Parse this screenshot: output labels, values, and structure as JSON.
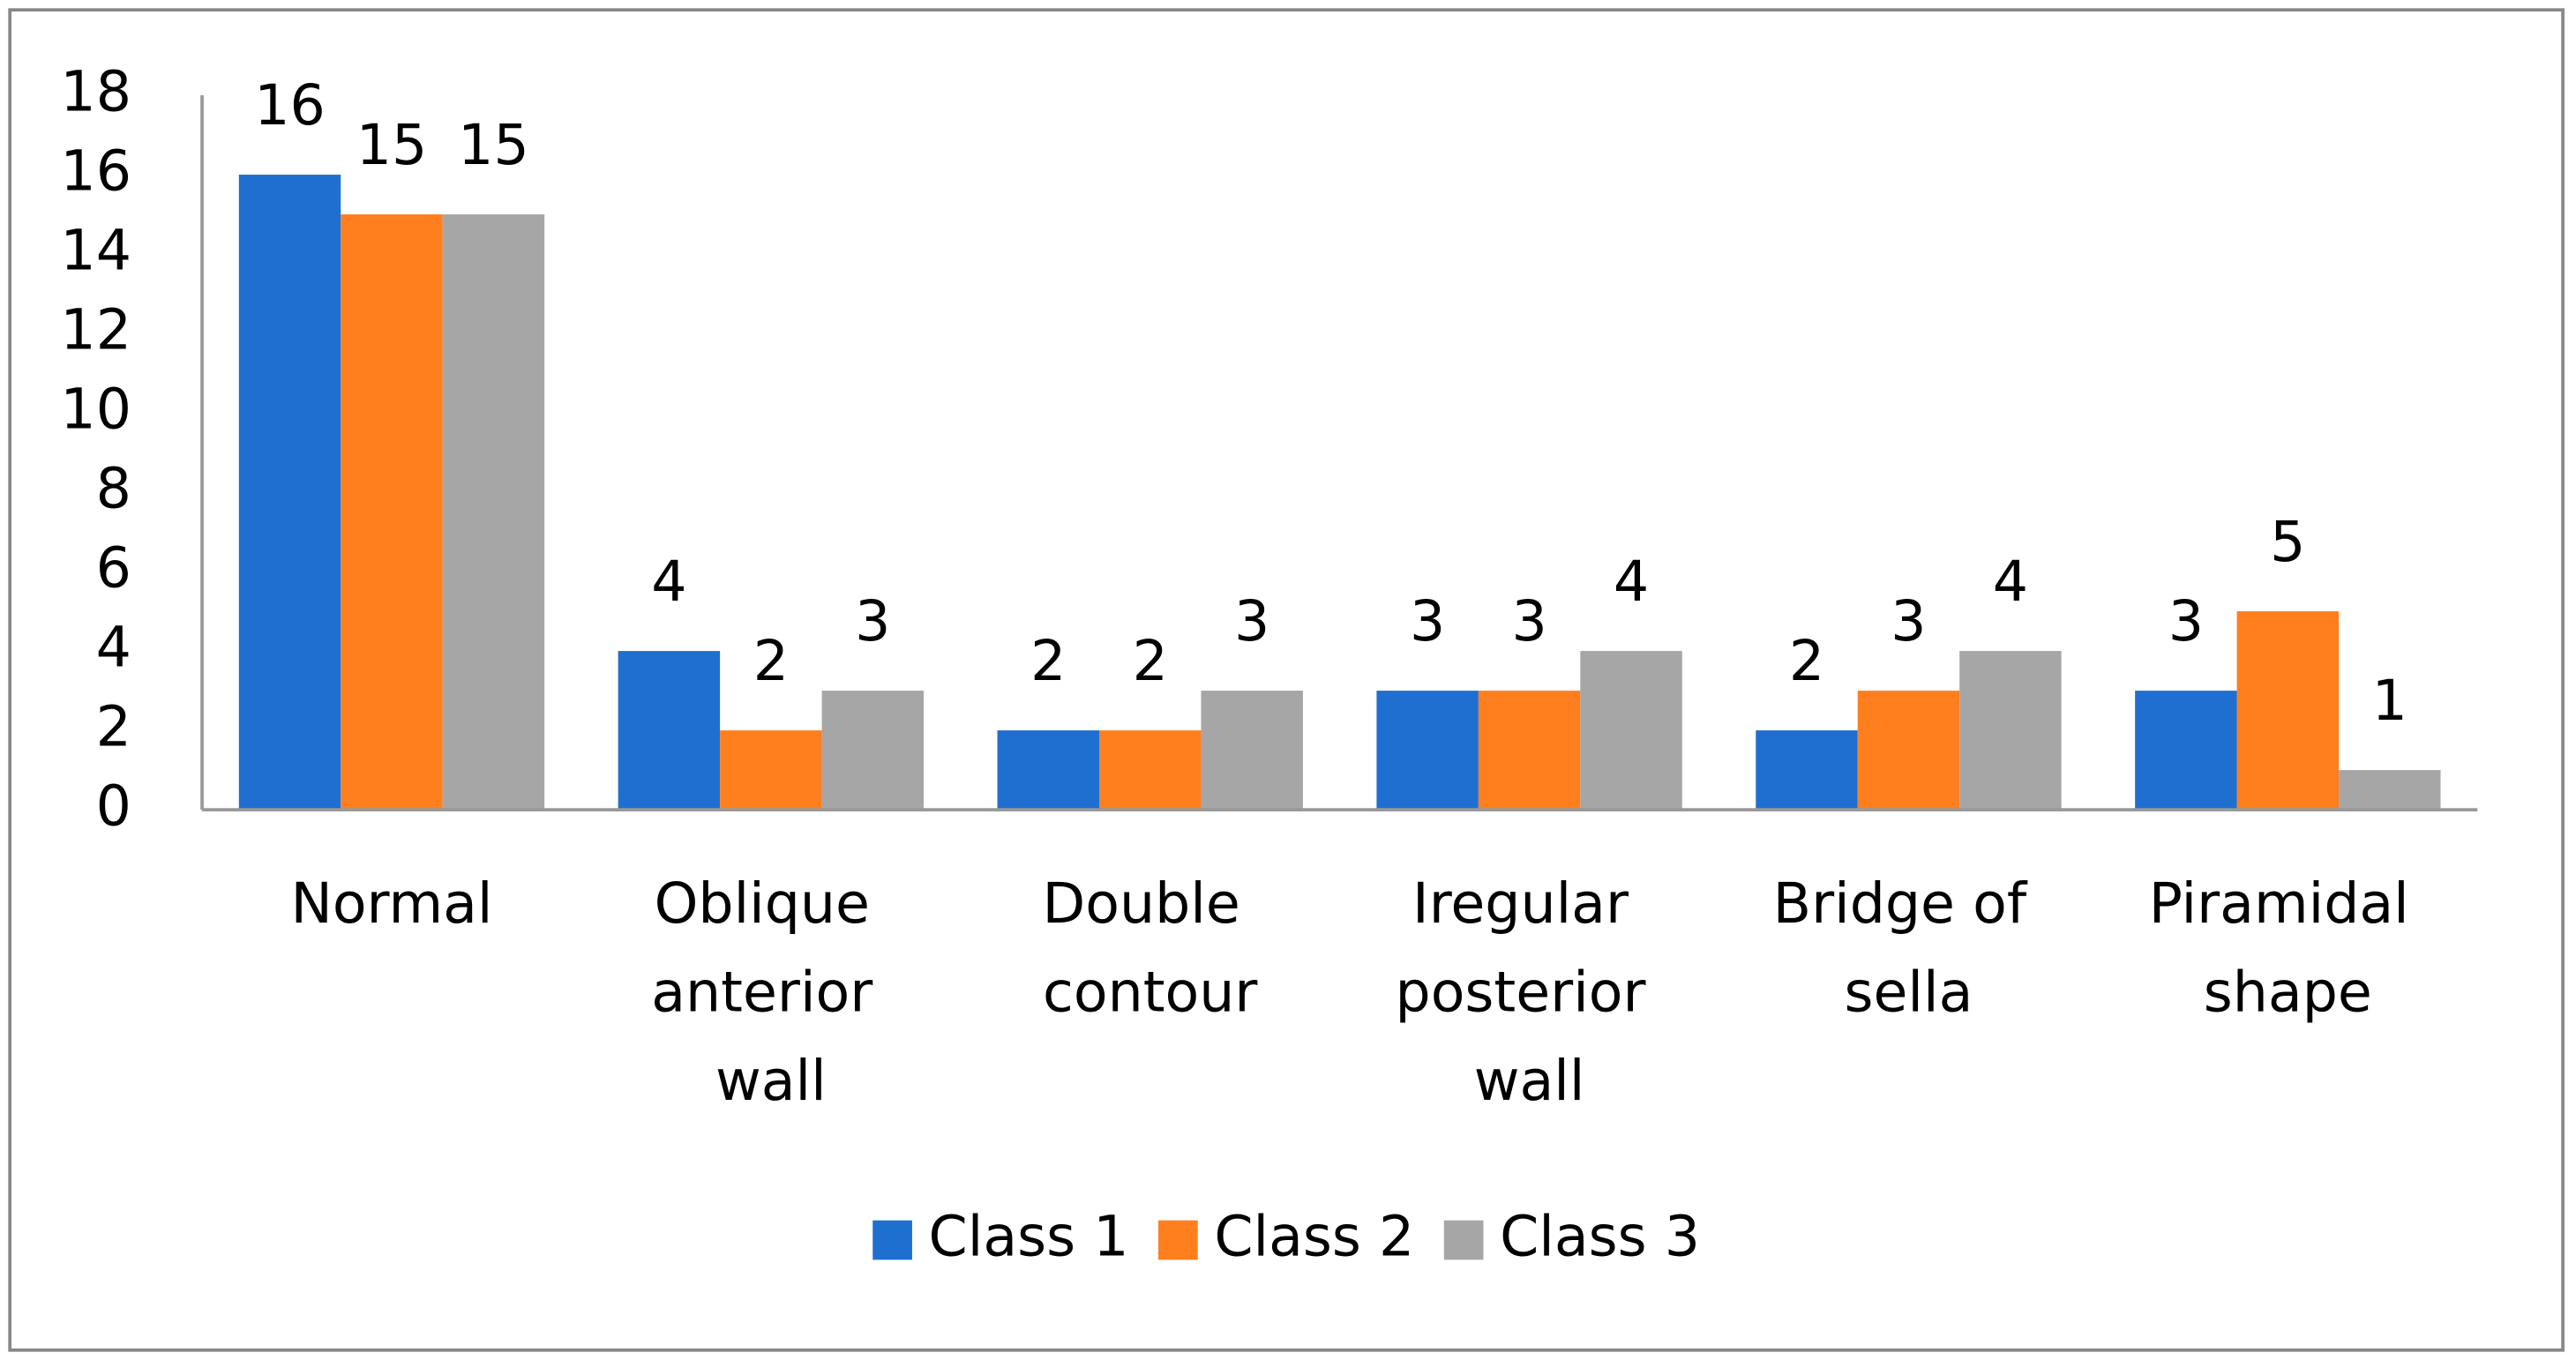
{
  "chart_data": {
    "type": "bar",
    "categories": [
      "Normal",
      "Oblique anterior wall",
      "Double contour",
      "Iregular posterior wall",
      "Bridge of sella",
      "Piramidal shape"
    ],
    "series": [
      {
        "name": "Class 1",
        "color": "#1f6fd1",
        "values": [
          16,
          4,
          2,
          3,
          2,
          3
        ]
      },
      {
        "name": "Class 2",
        "color": "#ff7f1e",
        "values": [
          15,
          2,
          2,
          3,
          3,
          5
        ]
      },
      {
        "name": "Class 3",
        "color": "#a6a6a6",
        "values": [
          15,
          3,
          3,
          4,
          4,
          1
        ]
      }
    ],
    "ylim": [
      0,
      18
    ],
    "yticks": [
      0,
      2,
      4,
      6,
      8,
      10,
      12,
      14,
      16,
      18
    ],
    "grid": false,
    "legend": "bottom"
  }
}
